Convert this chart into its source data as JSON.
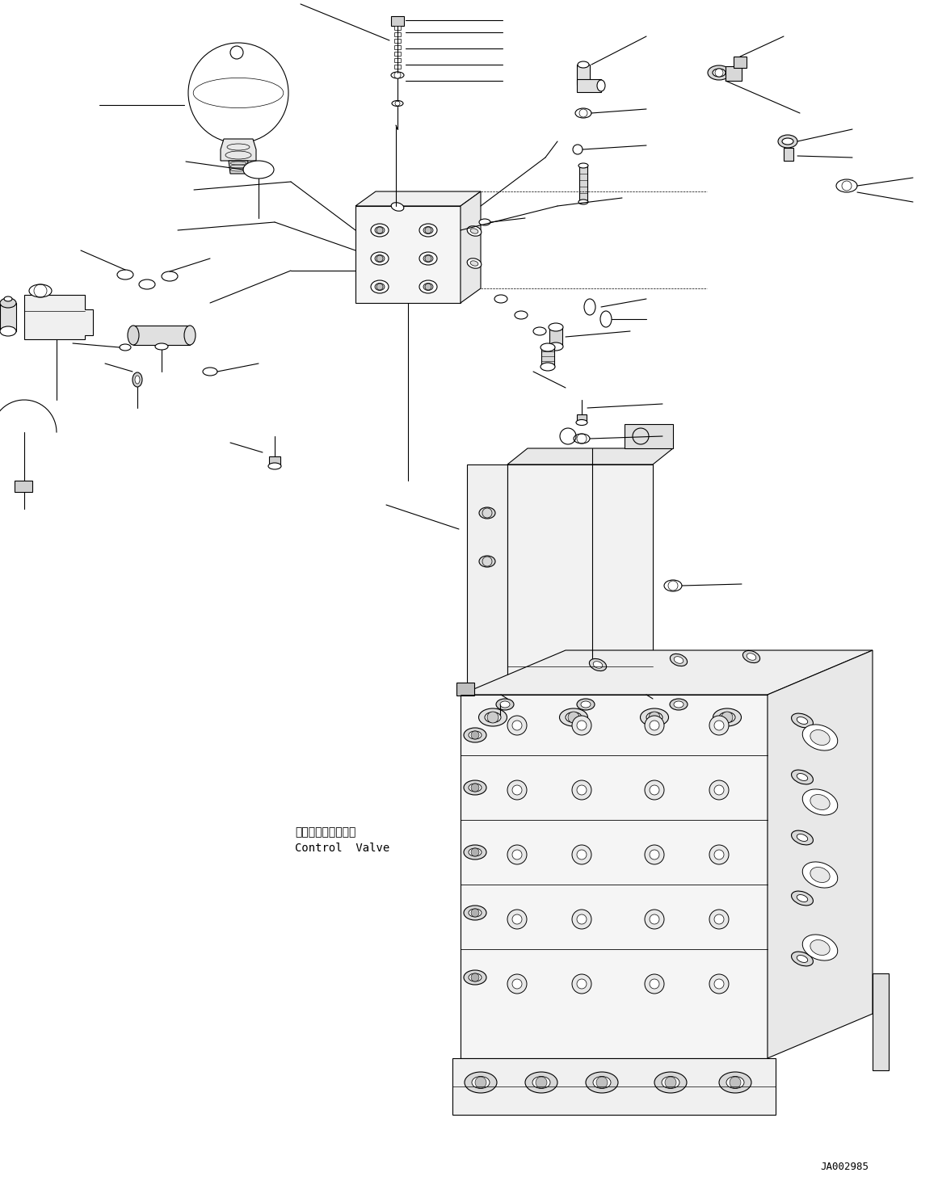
{
  "fig_width": 11.61,
  "fig_height": 14.62,
  "dpi": 100,
  "bg_color": "#ffffff",
  "line_color": "#000000",
  "line_width": 0.8,
  "label_bottom": "JA002985",
  "label_cv_jp": "コントロールバルブ",
  "label_cv_en": "Control  Valve"
}
